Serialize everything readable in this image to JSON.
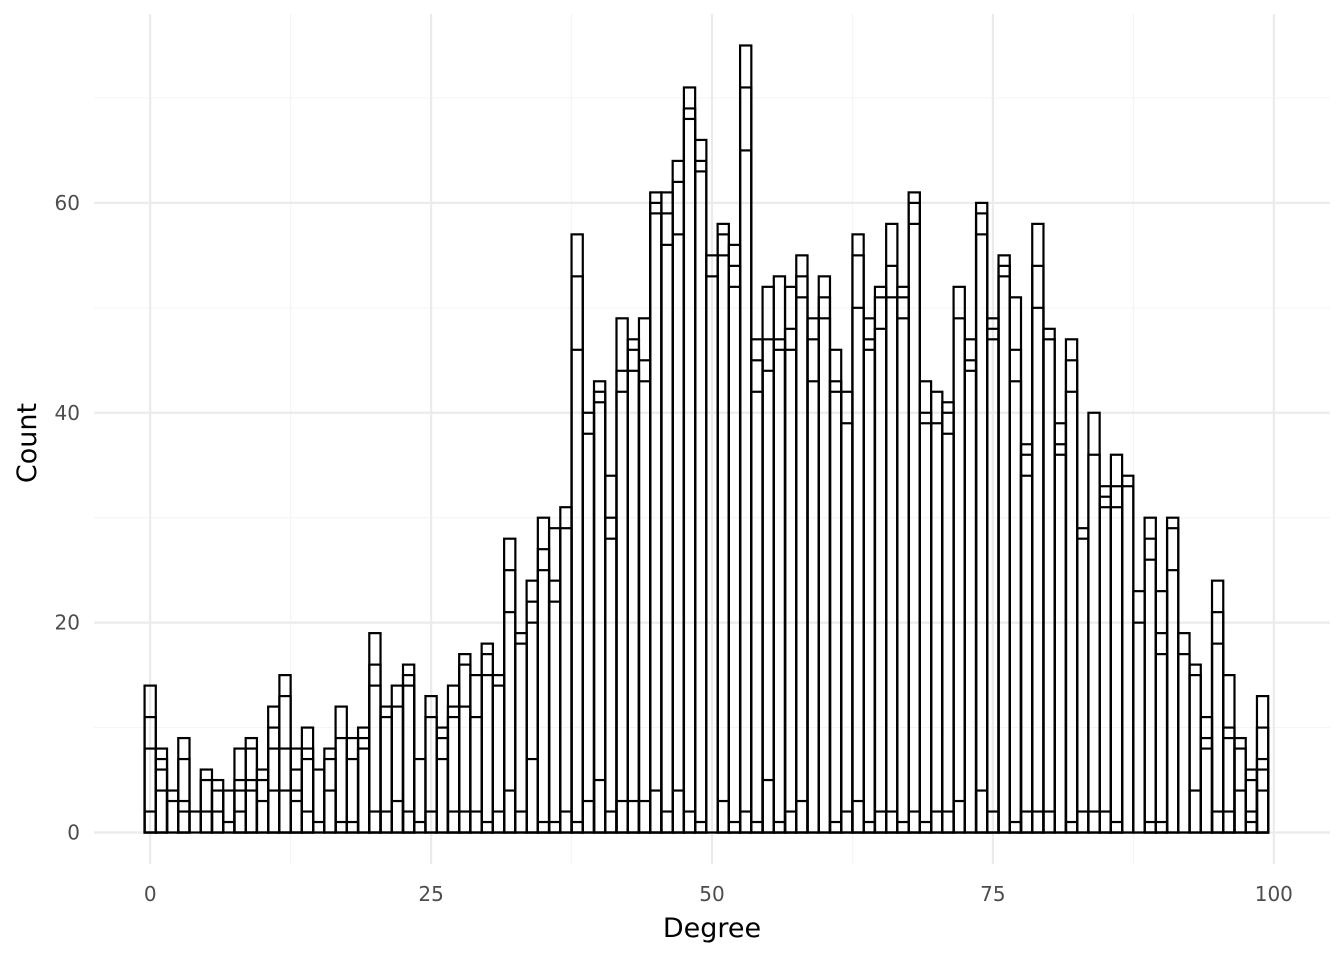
{
  "chart_data": {
    "type": "bar",
    "subtype": "stacked-histogram-outline",
    "title": "",
    "xlabel": "Degree",
    "ylabel": "Count",
    "xlim": [
      -5,
      105
    ],
    "ylim": [
      -3,
      78
    ],
    "x_ticks": [
      0,
      25,
      50,
      75,
      100
    ],
    "y_ticks": [
      0,
      20,
      40,
      60
    ],
    "grid": true,
    "legend": "none",
    "colors": {
      "bar_fill": "#ffffff",
      "bar_stroke": "#000000",
      "grid_major": "#ebebeb",
      "grid_minor": "#f5f5f5"
    },
    "bins": [
      {
        "x": 0,
        "levels": [
          2,
          8,
          11,
          14
        ]
      },
      {
        "x": 1,
        "levels": [
          4,
          6,
          7,
          8
        ]
      },
      {
        "x": 2,
        "levels": [
          3,
          4
        ]
      },
      {
        "x": 3,
        "levels": [
          2,
          3,
          7,
          9
        ]
      },
      {
        "x": 4,
        "levels": [
          2
        ]
      },
      {
        "x": 5,
        "levels": [
          2,
          5,
          6
        ]
      },
      {
        "x": 6,
        "levels": [
          2,
          4,
          5
        ]
      },
      {
        "x": 7,
        "levels": [
          1,
          4
        ]
      },
      {
        "x": 8,
        "levels": [
          2,
          4,
          5,
          8
        ]
      },
      {
        "x": 9,
        "levels": [
          4,
          5,
          8,
          9
        ]
      },
      {
        "x": 10,
        "levels": [
          3,
          5,
          6
        ]
      },
      {
        "x": 11,
        "levels": [
          4,
          8,
          10,
          12
        ]
      },
      {
        "x": 12,
        "levels": [
          4,
          8,
          13,
          15
        ]
      },
      {
        "x": 13,
        "levels": [
          3,
          4,
          6,
          8
        ]
      },
      {
        "x": 14,
        "levels": [
          2,
          7,
          8,
          10
        ]
      },
      {
        "x": 15,
        "levels": [
          1,
          6
        ]
      },
      {
        "x": 16,
        "levels": [
          4,
          7,
          8
        ]
      },
      {
        "x": 17,
        "levels": [
          1,
          9,
          12
        ]
      },
      {
        "x": 18,
        "levels": [
          1,
          7,
          9
        ]
      },
      {
        "x": 19,
        "levels": [
          8,
          9,
          10
        ]
      },
      {
        "x": 20,
        "levels": [
          2,
          14,
          16,
          19
        ]
      },
      {
        "x": 21,
        "levels": [
          2,
          11,
          12
        ]
      },
      {
        "x": 22,
        "levels": [
          3,
          12,
          14
        ]
      },
      {
        "x": 23,
        "levels": [
          2,
          14,
          15,
          16
        ]
      },
      {
        "x": 24,
        "levels": [
          1,
          7
        ]
      },
      {
        "x": 25,
        "levels": [
          2,
          11,
          13
        ]
      },
      {
        "x": 26,
        "levels": [
          7,
          9,
          10
        ]
      },
      {
        "x": 27,
        "levels": [
          2,
          11,
          12,
          14
        ]
      },
      {
        "x": 28,
        "levels": [
          2,
          12,
          16,
          17
        ]
      },
      {
        "x": 29,
        "levels": [
          2,
          11,
          15
        ]
      },
      {
        "x": 30,
        "levels": [
          1,
          15,
          17,
          18
        ]
      },
      {
        "x": 31,
        "levels": [
          2,
          14,
          15
        ]
      },
      {
        "x": 32,
        "levels": [
          4,
          21,
          25,
          28
        ]
      },
      {
        "x": 33,
        "levels": [
          2,
          18,
          19
        ]
      },
      {
        "x": 34,
        "levels": [
          7,
          20,
          22,
          24
        ]
      },
      {
        "x": 35,
        "levels": [
          1,
          25,
          27,
          30
        ]
      },
      {
        "x": 36,
        "levels": [
          1,
          22,
          24,
          29
        ]
      },
      {
        "x": 37,
        "levels": [
          2,
          29,
          31
        ]
      },
      {
        "x": 38,
        "levels": [
          1,
          46,
          53,
          57
        ]
      },
      {
        "x": 39,
        "levels": [
          3,
          38,
          40
        ]
      },
      {
        "x": 40,
        "levels": [
          5,
          41,
          42,
          43
        ]
      },
      {
        "x": 41,
        "levels": [
          2,
          28,
          30,
          34
        ]
      },
      {
        "x": 42,
        "levels": [
          3,
          42,
          44,
          49
        ]
      },
      {
        "x": 43,
        "levels": [
          3,
          44,
          46,
          47
        ]
      },
      {
        "x": 44,
        "levels": [
          3,
          43,
          45,
          49
        ]
      },
      {
        "x": 45,
        "levels": [
          4,
          59,
          60,
          61
        ]
      },
      {
        "x": 46,
        "levels": [
          2,
          56,
          59,
          61
        ]
      },
      {
        "x": 47,
        "levels": [
          4,
          57,
          62,
          64
        ]
      },
      {
        "x": 48,
        "levels": [
          2,
          68,
          69,
          71
        ]
      },
      {
        "x": 49,
        "levels": [
          1,
          63,
          64,
          66
        ]
      },
      {
        "x": 50,
        "levels": [
          53,
          55
        ]
      },
      {
        "x": 51,
        "levels": [
          3,
          55,
          57,
          58
        ]
      },
      {
        "x": 52,
        "levels": [
          1,
          52,
          54,
          56
        ]
      },
      {
        "x": 53,
        "levels": [
          2,
          65,
          71,
          75
        ]
      },
      {
        "x": 54,
        "levels": [
          1,
          42,
          45,
          47
        ]
      },
      {
        "x": 55,
        "levels": [
          5,
          44,
          47,
          52
        ]
      },
      {
        "x": 56,
        "levels": [
          1,
          46,
          47,
          53
        ]
      },
      {
        "x": 57,
        "levels": [
          2,
          46,
          48,
          52
        ]
      },
      {
        "x": 58,
        "levels": [
          3,
          51,
          53,
          55
        ]
      },
      {
        "x": 59,
        "levels": [
          43,
          47,
          49
        ]
      },
      {
        "x": 60,
        "levels": [
          49,
          51,
          53
        ]
      },
      {
        "x": 61,
        "levels": [
          1,
          42,
          43,
          46
        ]
      },
      {
        "x": 62,
        "levels": [
          2,
          39,
          42
        ]
      },
      {
        "x": 63,
        "levels": [
          3,
          50,
          55,
          57
        ]
      },
      {
        "x": 64,
        "levels": [
          1,
          46,
          47,
          49
        ]
      },
      {
        "x": 65,
        "levels": [
          2,
          48,
          51,
          52
        ]
      },
      {
        "x": 66,
        "levels": [
          2,
          51,
          54,
          58
        ]
      },
      {
        "x": 67,
        "levels": [
          1,
          49,
          51,
          52
        ]
      },
      {
        "x": 68,
        "levels": [
          2,
          58,
          60,
          61
        ]
      },
      {
        "x": 69,
        "levels": [
          1,
          39,
          40,
          43
        ]
      },
      {
        "x": 70,
        "levels": [
          2,
          39,
          42
        ]
      },
      {
        "x": 71,
        "levels": [
          2,
          38,
          40,
          41
        ]
      },
      {
        "x": 72,
        "levels": [
          3,
          49,
          52
        ]
      },
      {
        "x": 73,
        "levels": [
          44,
          45,
          47
        ]
      },
      {
        "x": 74,
        "levels": [
          4,
          57,
          59,
          60
        ]
      },
      {
        "x": 75,
        "levels": [
          2,
          47,
          48,
          49
        ]
      },
      {
        "x": 76,
        "levels": [
          53,
          54,
          55
        ]
      },
      {
        "x": 77,
        "levels": [
          1,
          43,
          46,
          51
        ]
      },
      {
        "x": 78,
        "levels": [
          2,
          34,
          36,
          37
        ]
      },
      {
        "x": 79,
        "levels": [
          2,
          50,
          54,
          58
        ]
      },
      {
        "x": 80,
        "levels": [
          2,
          47,
          48
        ]
      },
      {
        "x": 81,
        "levels": [
          36,
          37,
          39
        ]
      },
      {
        "x": 82,
        "levels": [
          1,
          42,
          45,
          47
        ]
      },
      {
        "x": 83,
        "levels": [
          2,
          28,
          29
        ]
      },
      {
        "x": 84,
        "levels": [
          2,
          36,
          40
        ]
      },
      {
        "x": 85,
        "levels": [
          2,
          31,
          32,
          33
        ]
      },
      {
        "x": 86,
        "levels": [
          1,
          31,
          33,
          36
        ]
      },
      {
        "x": 87,
        "levels": [
          33,
          34
        ]
      },
      {
        "x": 88,
        "levels": [
          20,
          23
        ]
      },
      {
        "x": 89,
        "levels": [
          1,
          26,
          28,
          30
        ]
      },
      {
        "x": 90,
        "levels": [
          1,
          17,
          19,
          23
        ]
      },
      {
        "x": 91,
        "levels": [
          25,
          29,
          30
        ]
      },
      {
        "x": 92,
        "levels": [
          17,
          19
        ]
      },
      {
        "x": 93,
        "levels": [
          4,
          15,
          16
        ]
      },
      {
        "x": 94,
        "levels": [
          8,
          9,
          11
        ]
      },
      {
        "x": 95,
        "levels": [
          2,
          18,
          21,
          24
        ]
      },
      {
        "x": 96,
        "levels": [
          2,
          9,
          10,
          15
        ]
      },
      {
        "x": 97,
        "levels": [
          4,
          8,
          9
        ]
      },
      {
        "x": 98,
        "levels": [
          1,
          2,
          5,
          6
        ]
      },
      {
        "x": 99,
        "levels": [
          4,
          6,
          7,
          10,
          13
        ]
      }
    ]
  }
}
